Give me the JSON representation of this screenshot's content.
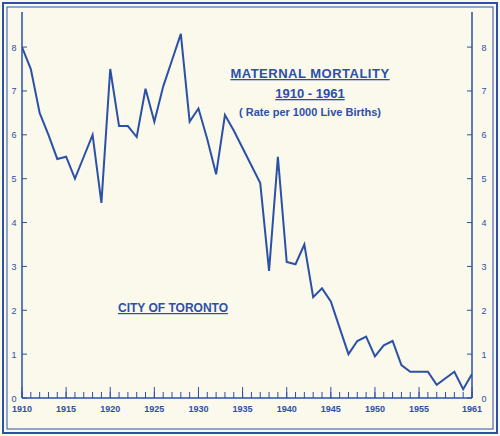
{
  "chart_data": {
    "type": "line",
    "title": "MATERNAL MORTALITY",
    "subtitle": "1910 - 1961",
    "annotations": [
      "( Rate per 1000 Live Births)",
      "CITY OF TORONTO"
    ],
    "x": [
      1910,
      1911,
      1912,
      1913,
      1914,
      1915,
      1916,
      1917,
      1918,
      1919,
      1920,
      1921,
      1922,
      1923,
      1924,
      1925,
      1926,
      1927,
      1928,
      1929,
      1930,
      1931,
      1932,
      1933,
      1934,
      1935,
      1936,
      1937,
      1938,
      1939,
      1940,
      1941,
      1942,
      1943,
      1944,
      1945,
      1946,
      1947,
      1948,
      1949,
      1950,
      1951,
      1952,
      1953,
      1954,
      1955,
      1956,
      1957,
      1958,
      1959,
      1960,
      1961
    ],
    "series": [
      {
        "name": "CITY OF TORONTO",
        "color": "#2b50a8",
        "values": [
          8.0,
          7.5,
          6.5,
          6.0,
          5.45,
          5.5,
          5.0,
          5.5,
          6.0,
          4.45,
          7.5,
          6.2,
          6.2,
          5.95,
          7.05,
          6.3,
          7.1,
          7.7,
          8.3,
          6.3,
          6.6,
          5.9,
          5.1,
          6.45,
          6.1,
          5.7,
          5.3,
          4.9,
          2.9,
          5.5,
          3.1,
          3.05,
          3.5,
          2.3,
          2.5,
          2.2,
          1.6,
          1.0,
          1.3,
          1.4,
          0.95,
          1.2,
          1.3,
          0.75,
          0.6,
          0.6,
          0.6,
          0.3,
          0.45,
          0.6,
          0.2,
          0.55
        ]
      }
    ],
    "xlim": [
      1910,
      1961
    ],
    "xticks": [
      1910,
      1915,
      1920,
      1925,
      1930,
      1935,
      1940,
      1945,
      1950,
      1955,
      1961
    ],
    "ylim": [
      0,
      8.8
    ],
    "yticks": [
      0,
      1,
      2,
      3,
      4,
      5,
      6,
      7,
      8
    ],
    "grid": false
  }
}
